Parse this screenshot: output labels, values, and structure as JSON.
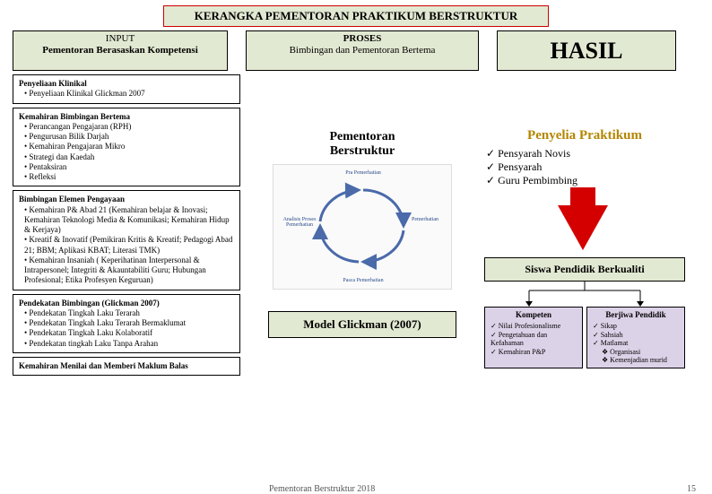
{
  "title": "KERANGKA PEMENTORAN PRAKTIKUM BERSTRUKTUR",
  "headers": {
    "input_top": "INPUT",
    "input_sub": "Pementoran Berasaskan Kompetensi",
    "proses_top": "PROSES",
    "proses_sub": "Bimbingan dan Pementoran Bertema",
    "hasil": "HASIL"
  },
  "left": {
    "klinikal_hd": "Penyeliaan Klinikal",
    "klinikal_item": "Penyeliaan Klinikal Glickman 2007",
    "kemahiran_hd": "Kemahiran Bimbingan Bertema",
    "kem_items": [
      "Perancangan Pengajaran (RPH)",
      "Pengurusan Bilik Darjah",
      "Kemahiran Pengajaran Mikro",
      "Strategi dan Kaedah",
      "Pentaksiran",
      "Refleksi"
    ],
    "elemen_hd": "Bimbingan Elemen Pengayaan",
    "elemen_items": [
      "Kemahiran P& Abad 21 (Kemahiran belajar & Inovasi; Kemahiran Teknologi Media & Komunikasi; Kemahiran Hidup & Kerjaya)",
      "Kreatif & Inovatif (Pemikiran Kritis & Kreatif; Pedagogi Abad 21; BBM; Aplikasi KBAT; Literasi TMK)",
      "Kemahiran Insaniah ( Keperihatinan Interpersonal & Intrapersonel; Integriti & Akauntabiliti Guru; Hubungan Profesional; Etika Profesyen Keguruan)"
    ],
    "pendekatan_hd": "Pendekatan Bimbingan (Glickman 2007)",
    "pendekatan_items": [
      "Pendekatan Tingkah Laku Terarah",
      "Pendekatan Tingkah Laku Terarah Bermaklumat",
      "Pendekatan Tingkah Laku Kolaboratif",
      "Pendekatan tingkah Laku Tanpa Arahan"
    ],
    "menilai": "Kemahiran Menilai dan Memberi Maklum Balas"
  },
  "mid": {
    "title1": "Pementoran",
    "title2": "Berstruktur",
    "cycle": [
      "Pra Pemerhatian",
      "Pemerhatian",
      "Pasca Pemerhatian",
      "Analisis Proses Pemerhatian"
    ],
    "model": "Model Glickman (2007)"
  },
  "right": {
    "penyelia": "Penyelia Praktikum",
    "plist": [
      "Pensyarah Novis",
      "Pensyarah",
      "Guru Pembimbing"
    ],
    "siswa": "Siswa Pendidik Berkualiti",
    "komp_hd": "Kompeten",
    "komp_items": [
      "Nilai Profesionalisme",
      "Pengetahuan dan Kefahaman",
      "Kemahiran P&P"
    ],
    "jiwa_hd": "Berjiwa Pendidik",
    "jiwa_items": [
      "Sikap",
      "Sahsiah",
      "Matlamat"
    ],
    "jiwa_sub": [
      "Organisasi",
      "Kemenjadian murid"
    ]
  },
  "footer": {
    "text": "Pementoran Berstruktur 2018",
    "page": "15"
  },
  "colors": {
    "header_bg": "#e2e9d2",
    "border_red": "#c00000",
    "arrow_red": "#d40000",
    "gold": "#b38600",
    "purple_bg": "#dcd2e8"
  }
}
